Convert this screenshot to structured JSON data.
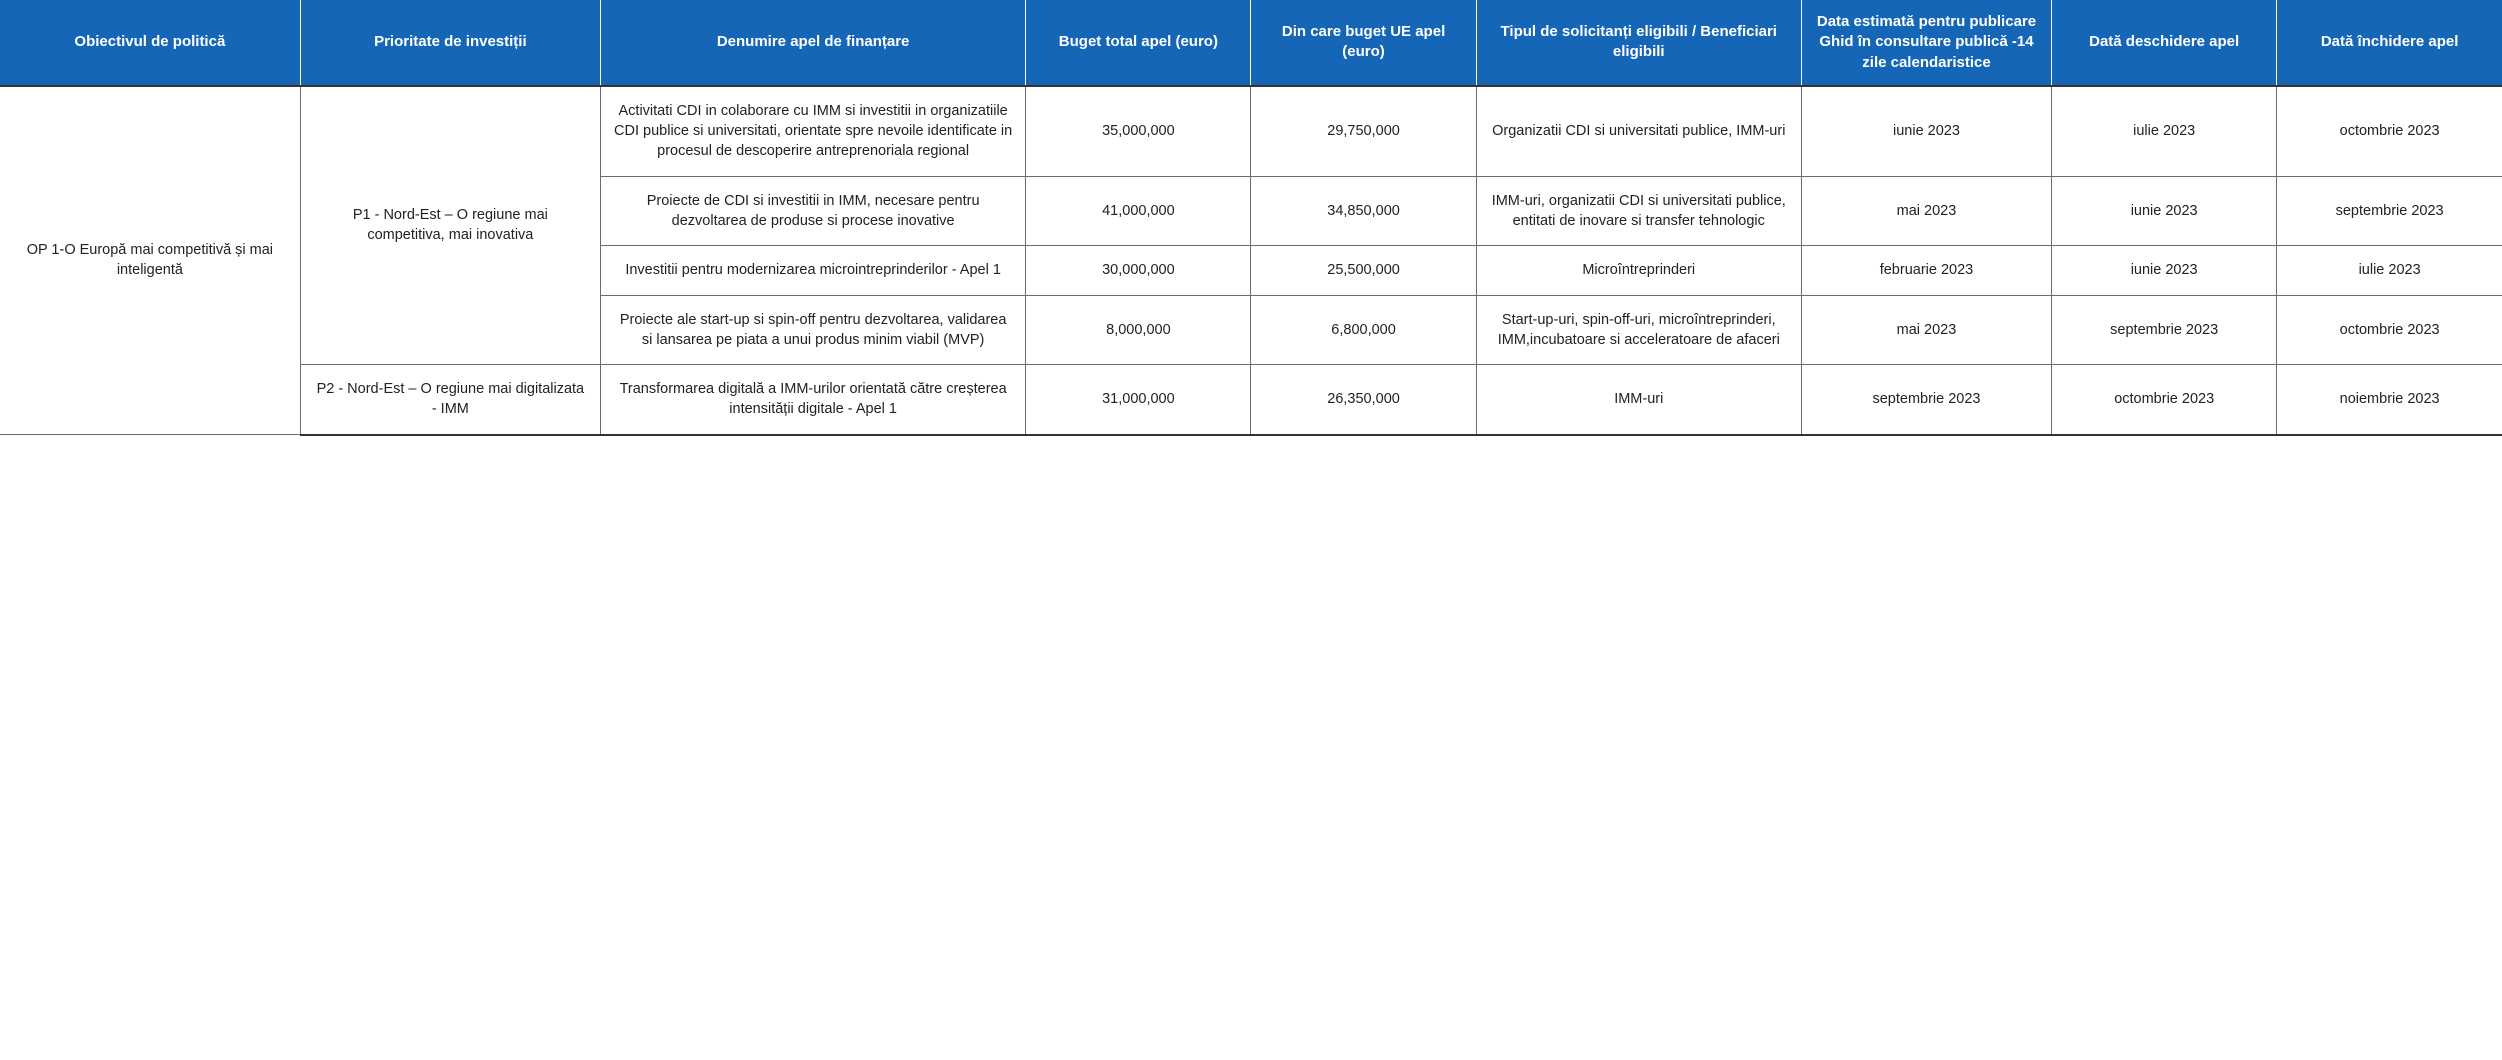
{
  "header_bg": "#1566b7",
  "header_fg": "#ffffff",
  "body_fg": "#222222",
  "border_color": "#6b6b6b",
  "columns": [
    "Obiectivul de politică",
    "Prioritate de investiții",
    "Denumire apel de finanțare",
    "Buget total apel (euro)",
    "Din care buget UE apel (euro)",
    "Tipul de solicitanți eligibili / Beneficiari eligibili",
    "Data estimată pentru publicare Ghid în consultare publică -14 zile calendaristice",
    "Dată deschidere apel",
    "Dată închidere apel"
  ],
  "objective": "OP 1-O Europă mai competitivă și mai inteligentă",
  "priorities": [
    {
      "label": "P1 - Nord-Est – O regiune mai competitiva, mai inovativa",
      "rows": [
        {
          "name": "Activitati CDI in colaborare cu IMM si investitii in organizatiile CDI publice si universitati, orientate spre nevoile identificate in procesul de descoperire antreprenoriala regional",
          "budget_total": "35,000,000",
          "budget_ue": "29,750,000",
          "eligible": "Organizatii CDI si universitati publice, IMM-uri",
          "date_guide": "iunie 2023",
          "date_open": "iulie 2023",
          "date_close": "octombrie 2023"
        },
        {
          "name": "Proiecte de CDI si investitii in IMM, necesare pentru dezvoltarea de produse si procese inovative",
          "budget_total": "41,000,000",
          "budget_ue": "34,850,000",
          "eligible": "IMM-uri, organizatii CDI si universitati publice, entitati de inovare si transfer tehnologic",
          "date_guide": "mai 2023",
          "date_open": "iunie 2023",
          "date_close": "septembrie 2023"
        },
        {
          "name": "Investitii pentru modernizarea microintreprinderilor  - Apel 1",
          "budget_total": "30,000,000",
          "budget_ue": "25,500,000",
          "eligible": "Microîntreprinderi",
          "date_guide": "februarie 2023",
          "date_open": "iunie 2023",
          "date_close": "iulie 2023"
        },
        {
          "name": "Proiecte ale start-up si spin-off pentru dezvoltarea, validarea si lansarea pe piata a unui produs minim viabil (MVP)",
          "budget_total": "8,000,000",
          "budget_ue": "6,800,000",
          "eligible": "Start-up-uri, spin-off-uri, microîntreprinderi, IMM,incubatoare si acceleratoare de afaceri",
          "date_guide": "mai 2023",
          "date_open": "septembrie 2023",
          "date_close": "octombrie 2023"
        }
      ]
    },
    {
      "label": "P2 - Nord-Est – O regiune mai digitalizata - IMM",
      "rows": [
        {
          "name": "Transformarea digitală a IMM-urilor orientată către creșterea intensității digitale - Apel 1",
          "budget_total": "31,000,000",
          "budget_ue": "26,350,000",
          "eligible": "IMM-uri",
          "date_guide": "septembrie 2023",
          "date_open": "octombrie 2023",
          "date_close": "noiembrie 2023"
        }
      ]
    }
  ]
}
